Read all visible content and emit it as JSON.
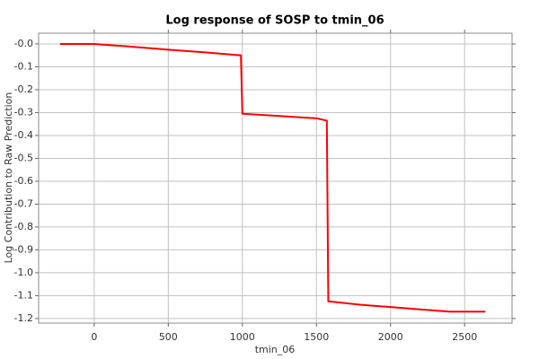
{
  "chart_data": {
    "type": "line",
    "title": "Log response of SOSP to tmin_06",
    "x_label": "tmin_06",
    "y_label": "Log Contribution to Raw Prediction",
    "x": [
      -230,
      0,
      250,
      500,
      750,
      990,
      1000,
      1250,
      1500,
      1570,
      1580,
      1800,
      2000,
      2200,
      2400,
      2640
    ],
    "series": [
      {
        "color": "#ff0000",
        "values": [
          0,
          0,
          -0.012,
          -0.025,
          -0.037,
          -0.05,
          -0.305,
          -0.315,
          -0.325,
          -0.335,
          -1.125,
          -1.14,
          -1.15,
          -1.16,
          -1.17,
          -1.17
        ]
      }
    ],
    "xlim": [
      -375,
      2820
    ],
    "xticks": [
      0,
      500,
      1000,
      1500,
      2000,
      2500
    ],
    "ylim": [
      -1.22,
      0.047
    ],
    "yticks": [
      {
        "value": 0,
        "label": "-0.0"
      },
      -0.1,
      -0.2,
      -0.3,
      -0.4,
      -0.5,
      -0.6,
      -0.7,
      -0.8,
      -0.9,
      {
        "value": -1,
        "label": "-1.0"
      },
      -1.1,
      -1.2
    ],
    "grid": true
  }
}
